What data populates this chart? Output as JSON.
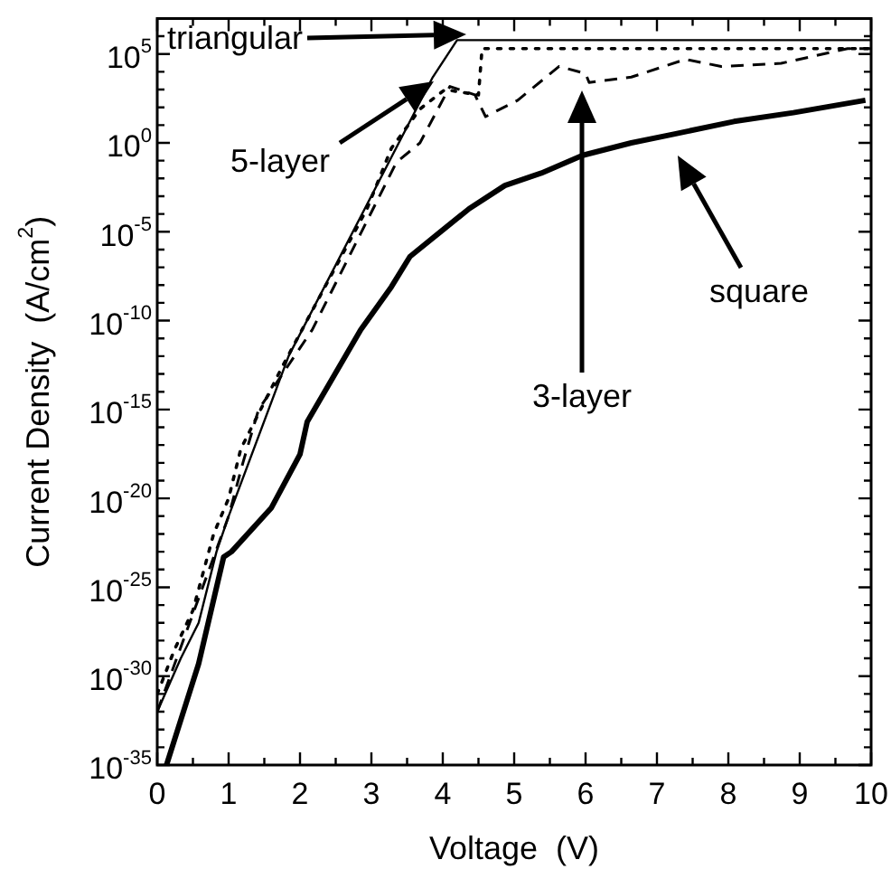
{
  "chart_data": {
    "type": "line",
    "xlabel": "Voltage  (V)",
    "ylabel": "Current Density  (A/cm$^{2}$)",
    "log": "y",
    "grid": false,
    "legend": false,
    "marker": "none",
    "xlim": [
      0,
      10
    ],
    "ylim": [
      1e-35,
      10000000.0
    ],
    "xticks": [
      0,
      {
        "value": 0.5,
        "label": null
      },
      1,
      {
        "value": 1.5,
        "label": null
      },
      2,
      {
        "value": 2.5,
        "label": null
      },
      3,
      {
        "value": 3.5,
        "label": null
      },
      4,
      {
        "value": 4.5,
        "label": null
      },
      5,
      {
        "value": 5.5,
        "label": null
      },
      6,
      {
        "value": 6.5,
        "label": null
      },
      7,
      {
        "value": 7.5,
        "label": null
      },
      8,
      {
        "value": 8.5,
        "label": null
      },
      9,
      {
        "value": 9.5,
        "label": null
      },
      10
    ],
    "yticks": [
      {
        "value": 1e-35,
        "label": "10$^{-35}$"
      },
      {
        "value": 1e-34,
        "label": null
      },
      {
        "value": 1e-33,
        "label": null
      },
      {
        "value": 1e-32,
        "label": null
      },
      {
        "value": 1e-31,
        "label": null
      },
      {
        "value": 1e-30,
        "label": "10$^{-30}$"
      },
      {
        "value": 1e-29,
        "label": null
      },
      {
        "value": 1e-28,
        "label": null
      },
      {
        "value": 1e-27,
        "label": null
      },
      {
        "value": 1e-26,
        "label": null
      },
      {
        "value": 1e-25,
        "label": "10$^{-25}$"
      },
      {
        "value": 1e-24,
        "label": null
      },
      {
        "value": 1e-23,
        "label": null
      },
      {
        "value": 1e-22,
        "label": null
      },
      {
        "value": 1e-21,
        "label": null
      },
      {
        "value": 1e-20,
        "label": "10$^{-20}$"
      },
      {
        "value": 1e-19,
        "label": null
      },
      {
        "value": 1e-18,
        "label": null
      },
      {
        "value": 1e-17,
        "label": null
      },
      {
        "value": 1e-16,
        "label": null
      },
      {
        "value": 1e-15,
        "label": "10$^{-15}$"
      },
      {
        "value": 1e-14,
        "label": null
      },
      {
        "value": 1e-13,
        "label": null
      },
      {
        "value": 1e-12,
        "label": null
      },
      {
        "value": 1e-11,
        "label": null
      },
      {
        "value": 1e-10,
        "label": "10$^{-10}$"
      },
      {
        "value": 1e-09,
        "label": null
      },
      {
        "value": 1e-08,
        "label": null
      },
      {
        "value": 1e-07,
        "label": null
      },
      {
        "value": 1e-06,
        "label": null
      },
      {
        "value": 1e-05,
        "label": "10$^{-5}$"
      },
      {
        "value": 0.0001,
        "label": null
      },
      {
        "value": 0.001,
        "label": null
      },
      {
        "value": 0.01,
        "label": null
      },
      {
        "value": 0.1,
        "label": null
      },
      {
        "value": 1,
        "label": "10$^{0}$"
      },
      {
        "value": 10,
        "label": null
      },
      {
        "value": 100,
        "label": null
      },
      {
        "value": 1000,
        "label": null
      },
      {
        "value": 10000,
        "label": null
      },
      {
        "value": 100000,
        "label": "10$^{5}$"
      },
      {
        "value": 1000000,
        "label": null
      }
    ],
    "series": [
      {
        "color": "#000000",
        "line_style": "solid",
        "x": [
          0,
          0.33,
          0.58,
          0.83,
          1,
          1.84,
          3.86,
          4.2,
          10
        ],
        "values": [
          1e-32,
          1e-29,
          1e-27,
          1e-23,
          1e-21,
          1e-12,
          5000,
          600000,
          600000
        ]
      },
      {
        "color": "#000000",
        "line_style": "dotted",
        "x": [
          0,
          0.24,
          0.5,
          0.79,
          1,
          1.17,
          1.76,
          2.35,
          2.94,
          3.28,
          3.68,
          4.03,
          4.5,
          4.55,
          5.5,
          7,
          8.5,
          10
        ],
        "values": [
          1e-31,
          3e-29,
          5e-27,
          1e-22,
          1e-20,
          6e-18,
          3e-13,
          8e-09,
          0.0002,
          0.5,
          80,
          1000,
          500,
          200000,
          200000,
          200000,
          200000,
          200000
        ]
      },
      {
        "color": "#000000",
        "line_style": "dashed",
        "x": [
          0,
          1,
          1.2,
          1.42,
          2.17,
          2.85,
          3.35,
          3.68,
          4.1,
          4.45,
          4.6,
          5.05,
          5.63,
          6,
          6.05,
          6.64,
          7.4,
          7.9,
          8.74,
          9.67,
          10
        ],
        "values": [
          1e-32,
          1e-21,
          1e-18,
          1e-15,
          3e-11,
          8e-06,
          0.08,
          1,
          1500,
          500,
          30,
          250,
          20000,
          8000,
          2500,
          5000,
          50000,
          20000,
          30000,
          200000,
          200000
        ]
      },
      {
        "color": "#000000",
        "line_style": "solid",
        "x": [
          0.13,
          0.58,
          0.93,
          1.04,
          1.6,
          2,
          2.1,
          2.85,
          3.28,
          3.54,
          3.94,
          4.37,
          4.87,
          5.38,
          5.96,
          6.64,
          7.22,
          8.08,
          8.91,
          9.92
        ],
        "values": [
          1e-35,
          5e-30,
          5e-24,
          1e-23,
          3e-21,
          3e-18,
          2e-16,
          3e-11,
          8e-09,
          4e-07,
          8e-06,
          0.0002,
          0.004,
          0.02,
          0.2,
          1,
          3,
          16,
          50,
          250
        ]
      }
    ],
    "annotations": [
      "triangular",
      "5-layer",
      "3-layer",
      "square"
    ]
  }
}
